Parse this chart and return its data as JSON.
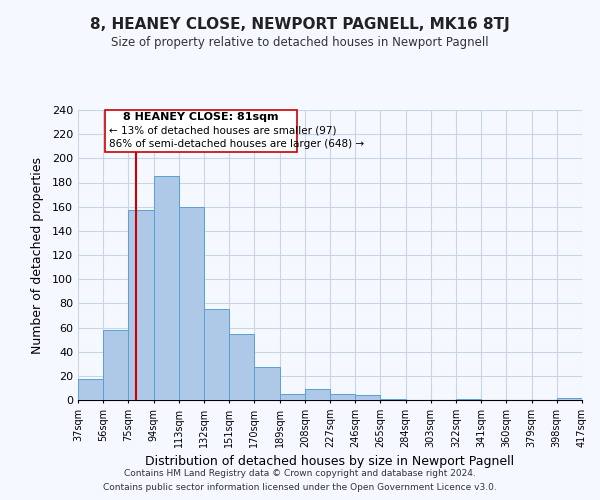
{
  "title": "8, HEANEY CLOSE, NEWPORT PAGNELL, MK16 8TJ",
  "subtitle": "Size of property relative to detached houses in Newport Pagnell",
  "xlabel": "Distribution of detached houses by size in Newport Pagnell",
  "ylabel": "Number of detached properties",
  "bar_edges": [
    37,
    56,
    75,
    94,
    113,
    132,
    151,
    170,
    189,
    208,
    227,
    246,
    265,
    284,
    303,
    322,
    341,
    360,
    379,
    398,
    417
  ],
  "bar_heights": [
    17,
    58,
    157,
    185,
    160,
    75,
    55,
    27,
    5,
    9,
    5,
    4,
    1,
    0,
    0,
    1,
    0,
    0,
    0,
    2
  ],
  "bar_color": "#aec8e8",
  "bar_edge_color": "#5a9fd4",
  "ylim": [
    0,
    240
  ],
  "yticks": [
    0,
    20,
    40,
    60,
    80,
    100,
    120,
    140,
    160,
    180,
    200,
    220,
    240
  ],
  "property_line_x": 81,
  "property_line_color": "#cc0000",
  "annotation_title": "8 HEANEY CLOSE: 81sqm",
  "annotation_line1": "← 13% of detached houses are smaller (97)",
  "annotation_line2": "86% of semi-detached houses are larger (648) →",
  "footer_line1": "Contains HM Land Registry data © Crown copyright and database right 2024.",
  "footer_line2": "Contains public sector information licensed under the Open Government Licence v3.0.",
  "background_color": "#f5f8ff",
  "grid_color": "#c8d4e8"
}
